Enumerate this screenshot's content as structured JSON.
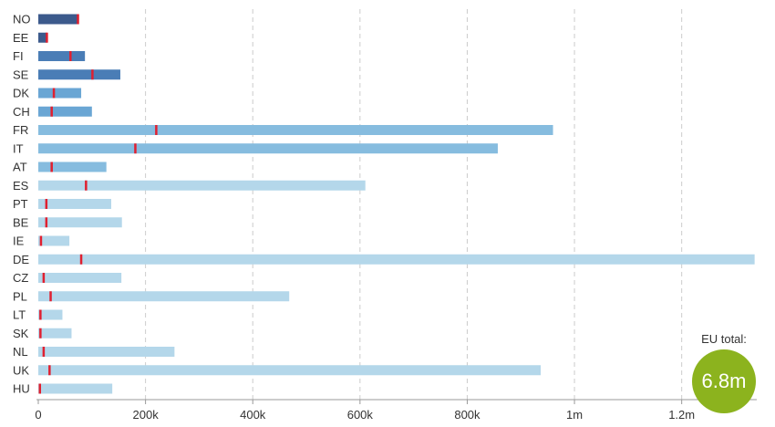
{
  "chart_data": {
    "type": "bar",
    "orientation": "horizontal",
    "categories": [
      "NO",
      "EE",
      "FI",
      "SE",
      "DK",
      "CH",
      "FR",
      "IT",
      "AT",
      "ES",
      "PT",
      "BE",
      "IE",
      "DE",
      "CZ",
      "PL",
      "LT",
      "SK",
      "NL",
      "UK",
      "HU"
    ],
    "values": [
      75000,
      16000,
      87000,
      153000,
      80000,
      100000,
      960000,
      857000,
      127000,
      610000,
      136000,
      156000,
      58000,
      1336000,
      155000,
      468000,
      45000,
      62000,
      254000,
      937000,
      138000
    ],
    "marker_values": [
      74000,
      16000,
      60000,
      101000,
      29000,
      25000,
      220000,
      181000,
      25000,
      89000,
      15000,
      15000,
      5000,
      80000,
      10000,
      23000,
      4000,
      4000,
      10000,
      21000,
      3000
    ],
    "bar_colors": [
      "#3c5a8c",
      "#3c5a8c",
      "#4a7db6",
      "#4a7db6",
      "#6aa6d4",
      "#6aa6d4",
      "#86bcdf",
      "#86bcdf",
      "#86bcdf",
      "#b4d7ea",
      "#b4d7ea",
      "#b4d7ea",
      "#b4d7ea",
      "#b4d7ea",
      "#b4d7ea",
      "#b4d7ea",
      "#b4d7ea",
      "#b4d7ea",
      "#b4d7ea",
      "#b4d7ea",
      "#b4d7ea"
    ],
    "marker_color": "#e02030",
    "xlim": [
      0,
      1340000
    ],
    "xticks": [
      0,
      200000,
      400000,
      600000,
      800000,
      1000000,
      1200000
    ],
    "xtick_labels": [
      "0",
      "200k",
      "400k",
      "600k",
      "800k",
      "1m",
      "1.2m"
    ],
    "grid": "vertical dashed"
  },
  "summary": {
    "label": "EU total:",
    "value": "6.8m",
    "color": "#8cb31e"
  }
}
